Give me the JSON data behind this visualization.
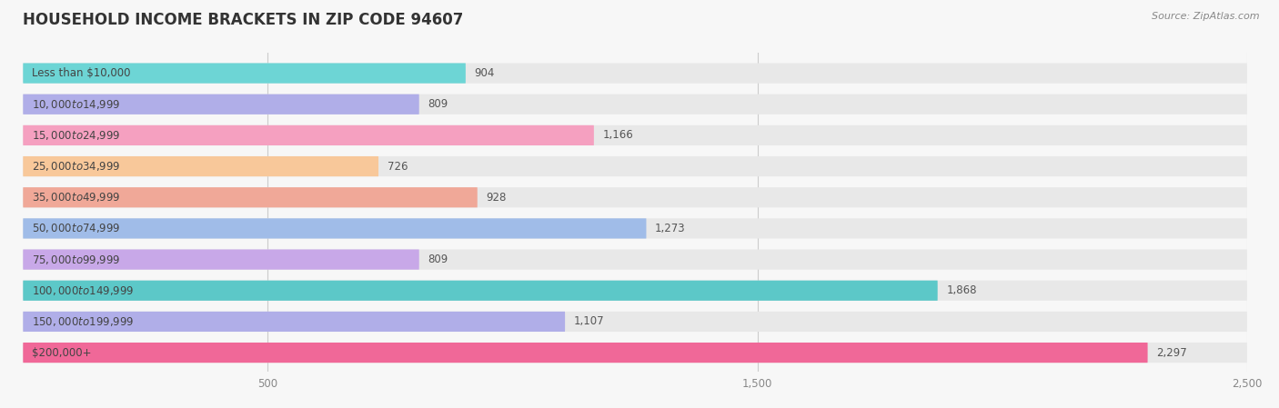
{
  "title": "HOUSEHOLD INCOME BRACKETS IN ZIP CODE 94607",
  "source": "Source: ZipAtlas.com",
  "categories": [
    "Less than $10,000",
    "$10,000 to $14,999",
    "$15,000 to $24,999",
    "$25,000 to $34,999",
    "$35,000 to $49,999",
    "$50,000 to $74,999",
    "$75,000 to $99,999",
    "$100,000 to $149,999",
    "$150,000 to $199,999",
    "$200,000+"
  ],
  "values": [
    904,
    809,
    1166,
    726,
    928,
    1273,
    809,
    1868,
    1107,
    2297
  ],
  "bar_colors": [
    "#6dd5d5",
    "#b0aee8",
    "#f5a0c0",
    "#f8c89a",
    "#f0a898",
    "#a0bce8",
    "#c8a8e8",
    "#5cc8c8",
    "#b0aee8",
    "#f06898"
  ],
  "value_labels": [
    "904",
    "809",
    "1,166",
    "726",
    "928",
    "1,273",
    "809",
    "1,868",
    "1,107",
    "2,297"
  ],
  "xlim_max": 2500,
  "xticks": [
    500,
    1500,
    2500
  ],
  "xtick_labels": [
    "500",
    "1,500",
    "2,500"
  ],
  "background_color": "#f7f7f7",
  "bar_bg_color": "#e8e8e8",
  "title_fontsize": 12,
  "label_fontsize": 8.5,
  "value_fontsize": 8.5,
  "source_fontsize": 8
}
